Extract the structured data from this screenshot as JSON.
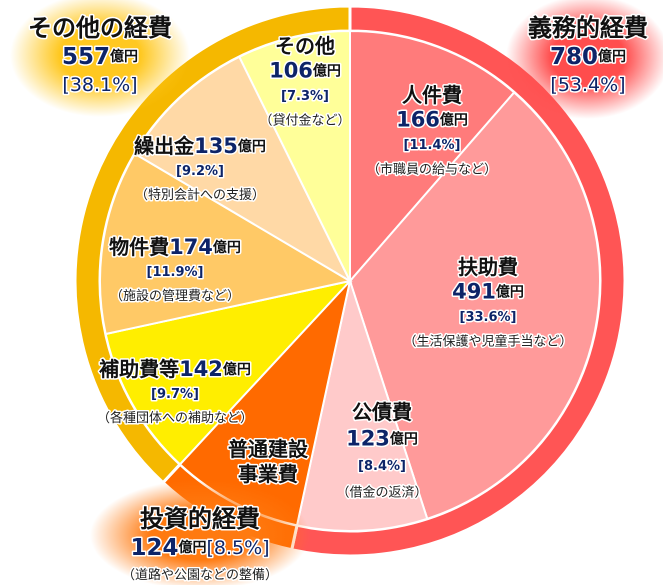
{
  "chart_data": {
    "type": "nested-pie",
    "unit": "億円",
    "groups": [
      {
        "name": "義務的経費",
        "amount": 780,
        "percent": 53.4,
        "percent_label": "[53.4%]",
        "color": "#ff5555"
      },
      {
        "name": "投資的経費",
        "amount": 124,
        "percent": 8.5,
        "percent_label": "[8.5%]",
        "note": "（道路や公園などの整備）",
        "color": "#ff6a00"
      },
      {
        "name": "その他の経費",
        "amount": 557,
        "percent": 38.1,
        "percent_label": "[38.1%]",
        "color": "#f5b800"
      }
    ],
    "slices": [
      {
        "name": "人件費",
        "amount": 166,
        "percent": 11.4,
        "percent_label": "[11.4%]",
        "note": "（市職員の給与など）",
        "color": "#ff7b7b"
      },
      {
        "name": "扶助費",
        "amount": 491,
        "percent": 33.6,
        "percent_label": "[33.6%]",
        "note": "（生活保護や児童手当など）",
        "color": "#ff9a9a"
      },
      {
        "name": "公債費",
        "amount": 123,
        "percent": 8.4,
        "percent_label": "[8.4%]",
        "note": "（借金の返済）",
        "color": "#ffcaca"
      },
      {
        "name_lines": [
          "普通建設",
          "事業費"
        ],
        "percent": 8.5,
        "color": "#ff6a00"
      },
      {
        "name": "補助費等",
        "amount": 142,
        "percent": 9.7,
        "percent_label": "[9.7%]",
        "note": "（各種団体への補助など）",
        "color": "#ffee00"
      },
      {
        "name": "物件費",
        "amount": 174,
        "percent": 11.9,
        "percent_label": "[11.9%]",
        "note": "（施設の管理費など）",
        "color": "#ffc966"
      },
      {
        "name": "繰出金",
        "amount": 135,
        "percent": 9.2,
        "percent_label": "[9.2%]",
        "note": "（特別会計への支援）",
        "color": "#ffd9a6"
      },
      {
        "name": "その他",
        "amount": 106,
        "percent": 7.3,
        "percent_label": "[7.3%]",
        "note": "（貸付金など）",
        "color": "#ffff99"
      }
    ]
  }
}
